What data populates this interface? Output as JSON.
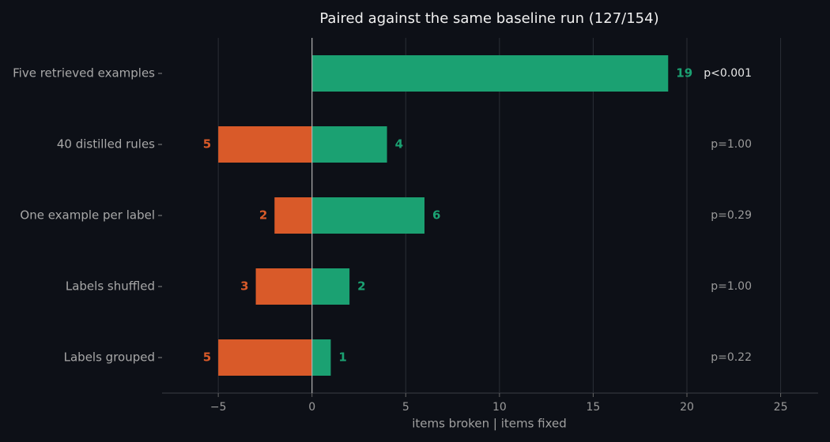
{
  "chart_data": {
    "type": "diverging-bar",
    "title": "Paired against the same baseline run (127/154)",
    "xlabel": "items broken  |  items fixed",
    "categories": [
      "Five retrieved examples",
      "40 distilled rules",
      "One example per label",
      "Labels shuffled",
      "Labels grouped"
    ],
    "series": [
      {
        "name": "items broken",
        "color": "#d95a29",
        "values": [
          0,
          -5,
          -2,
          -3,
          -5
        ],
        "value_labels": [
          null,
          "5",
          "2",
          "3",
          "5"
        ]
      },
      {
        "name": "items fixed",
        "color": "#1ba172",
        "values": [
          19,
          4,
          6,
          2,
          1
        ]
      }
    ],
    "annotations": [
      "p<0.001",
      "p=1.00",
      "p=0.29",
      "p=1.00",
      "p=0.22"
    ],
    "annotation_colors": [
      "#e6e6e6",
      "#9a9a9a",
      "#9a9a9a",
      "#9a9a9a",
      "#9a9a9a"
    ],
    "xlim": [
      -8,
      27
    ],
    "xticks": [
      {
        "value": -5,
        "label": "−5"
      },
      0,
      5,
      10,
      15,
      20,
      25
    ],
    "grid": true
  }
}
